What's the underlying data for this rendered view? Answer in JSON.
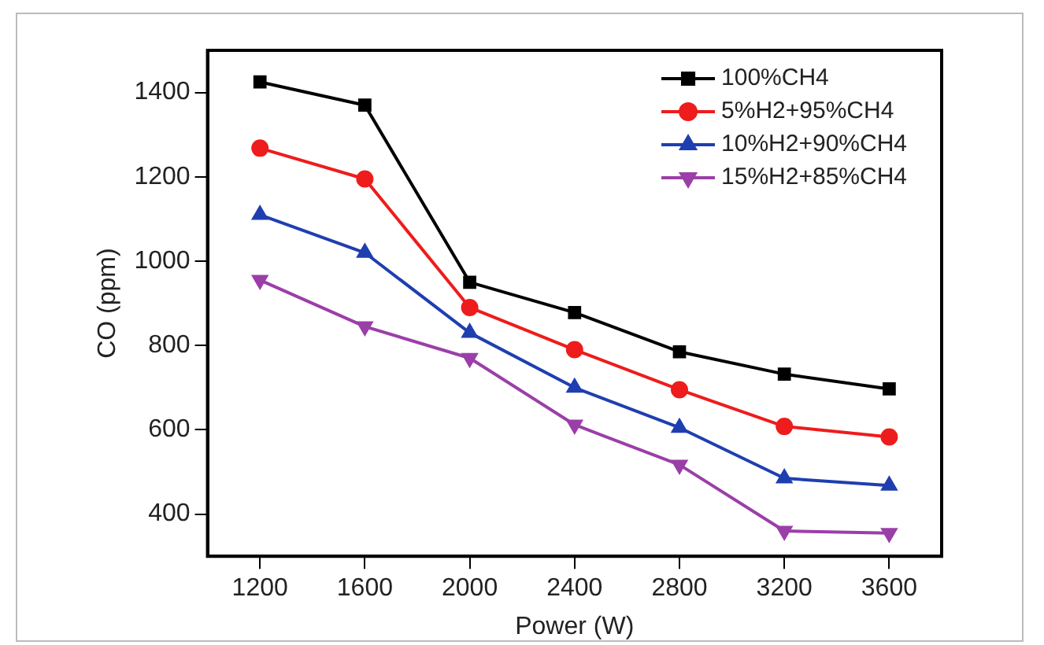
{
  "chart_data": {
    "type": "line",
    "xlabel": "Power (W)",
    "ylabel": "CO (ppm)",
    "x": [
      1200,
      1600,
      2000,
      2400,
      2800,
      3200,
      3600
    ],
    "series": [
      {
        "name": "100%CH4",
        "color": "#000000",
        "marker": "square",
        "values": [
          1425,
          1370,
          950,
          878,
          785,
          732,
          697
        ]
      },
      {
        "name": "5%H2+95%CH4",
        "color": "#ee1c1c",
        "marker": "circle",
        "values": [
          1268,
          1195,
          890,
          790,
          695,
          608,
          583
        ]
      },
      {
        "name": "10%H2+90%CH4",
        "color": "#1f3fb0",
        "marker": "triangle",
        "values": [
          1110,
          1020,
          830,
          700,
          605,
          485,
          468
        ]
      },
      {
        "name": "15%H2+85%CH4",
        "color": "#9b3fa8",
        "marker": "triangle-down",
        "values": [
          955,
          845,
          770,
          612,
          517,
          360,
          355
        ]
      }
    ],
    "xlim": [
      1000,
      3800
    ],
    "xticks": [
      1200,
      1600,
      2000,
      2400,
      2800,
      3200,
      3600
    ],
    "ylim": [
      300,
      1500
    ],
    "yticks": [
      400,
      600,
      800,
      1000,
      1200,
      1400
    ],
    "grid": false,
    "legend": "top right",
    "line_style": "solid"
  }
}
